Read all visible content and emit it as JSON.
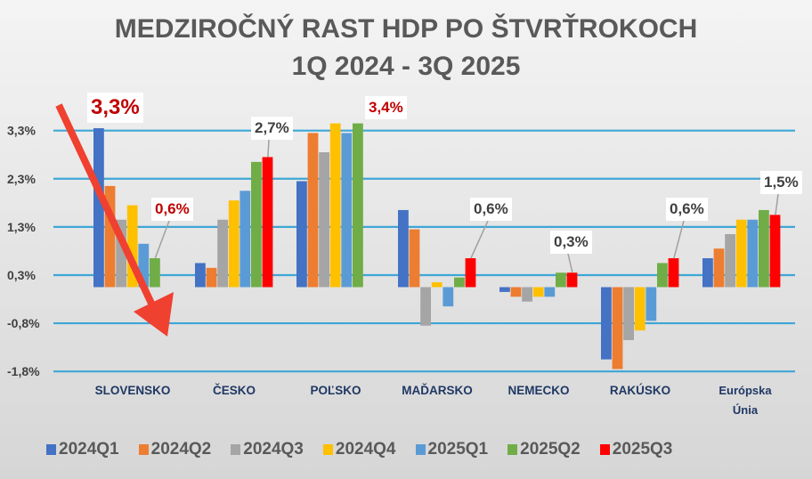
{
  "chart_data": {
    "type": "bar",
    "title": "MEDZIROČNÝ RAST HDP PO ŠTVRŤROKOCH",
    "subtitle": "1Q 2024 - 3Q 2025",
    "categories": [
      "SLOVENSKO",
      "ČESKO",
      "POĽSKO",
      "MAĎARSKO",
      "NEMECKO",
      "RAKÚSKO",
      "Európska Únia"
    ],
    "series": [
      {
        "name": "2024Q1",
        "color": "#4472c4",
        "values": [
          3.3,
          0.5,
          2.2,
          1.6,
          -0.1,
          -1.5,
          0.6
        ]
      },
      {
        "name": "2024Q2",
        "color": "#ed7d31",
        "values": [
          2.1,
          0.4,
          3.2,
          1.2,
          -0.2,
          -1.7,
          0.8
        ]
      },
      {
        "name": "2024Q3",
        "color": "#a5a5a5",
        "values": [
          1.4,
          1.4,
          2.8,
          -0.8,
          -0.3,
          -1.1,
          1.1
        ]
      },
      {
        "name": "2024Q4",
        "color": "#ffc000",
        "values": [
          1.7,
          1.8,
          3.4,
          0.1,
          -0.2,
          -0.9,
          1.4
        ]
      },
      {
        "name": "2025Q1",
        "color": "#5b9bd5",
        "values": [
          0.9,
          2.0,
          3.2,
          -0.4,
          -0.2,
          -0.7,
          1.4
        ]
      },
      {
        "name": "2025Q2",
        "color": "#70ad47",
        "values": [
          0.6,
          2.6,
          3.4,
          0.2,
          0.3,
          0.5,
          1.6
        ]
      },
      {
        "name": "2025Q3",
        "color": "#ff0000",
        "values": [
          null,
          2.7,
          null,
          0.6,
          0.3,
          0.6,
          1.5
        ]
      }
    ],
    "yticks": [
      3.25,
      2.25,
      1.25,
      0.25,
      -0.75,
      -1.75
    ],
    "ytick_labels": [
      "3,3%",
      "2,3%",
      "1,3%",
      "0,3%",
      "-0,8%",
      "-1,8%"
    ],
    "ylim": [
      -1.75,
      3.25
    ],
    "grid": true,
    "grid_color": "#3ea6d6",
    "legend": "bottom",
    "annotations": [
      "3,3%",
      "0,6%",
      "2,7%",
      "3,4%",
      "0,6%",
      "0,3%",
      "0,6%",
      "1,5%"
    ],
    "arrow_color": "#f04030"
  }
}
